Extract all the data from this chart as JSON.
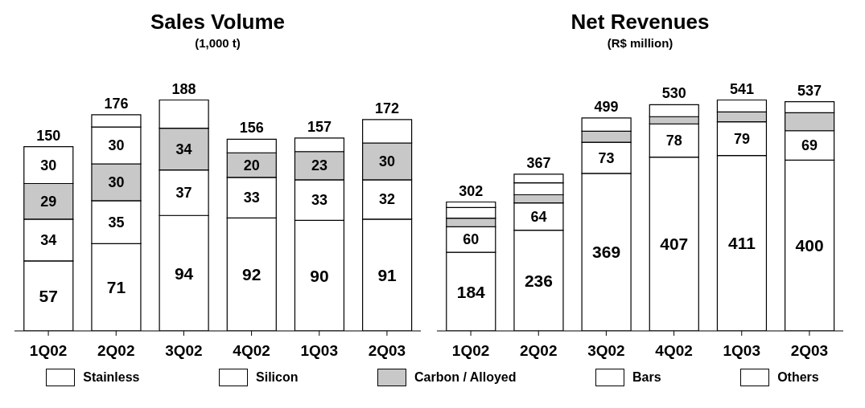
{
  "chart_data": [
    {
      "type": "bar",
      "title": "Sales Volume",
      "subtitle": "(1,000 t)",
      "stacked": true,
      "legend": "bottom",
      "categories": [
        "1Q02",
        "2Q02",
        "3Q02",
        "4Q02",
        "1Q03",
        "2Q03"
      ],
      "series": [
        {
          "name": "Stainless",
          "color": "#ffffff",
          "values": [
            57,
            71,
            94,
            92,
            90,
            91
          ],
          "value_labels": [
            "57",
            "71",
            "94",
            "92",
            "90",
            "91"
          ]
        },
        {
          "name": "Silicon",
          "color": "#ffffff",
          "values": [
            34,
            35,
            37,
            33,
            33,
            32
          ],
          "value_labels": [
            "34",
            "35",
            "37",
            "33",
            "33",
            "32"
          ]
        },
        {
          "name": "Carbon / Alloyed",
          "color": "#c8c8c8",
          "values": [
            29,
            30,
            34,
            20,
            23,
            30
          ],
          "value_labels": [
            "29",
            "30",
            "34",
            "20",
            "23",
            "30"
          ]
        },
        {
          "name": "Bars",
          "color": "#ffffff",
          "values": [
            30,
            30,
            null,
            null,
            null,
            null
          ],
          "value_labels": [
            "30",
            "30",
            null,
            null,
            null,
            null
          ]
        },
        {
          "name": "Others",
          "color": "#ffffff",
          "values": [
            null,
            10,
            23,
            11,
            11,
            19
          ]
        }
      ],
      "totals": [
        "150",
        "176",
        "188",
        "156",
        "157",
        "172"
      ]
    },
    {
      "type": "bar",
      "title": "Net Revenues",
      "subtitle": "(R$ million)",
      "stacked": true,
      "categories": [
        "1Q02",
        "2Q02",
        "3Q02",
        "4Q02",
        "1Q03",
        "2Q03"
      ],
      "series": [
        {
          "color": "#ffffff",
          "values": [
            184,
            236,
            369,
            407,
            411,
            400
          ],
          "value_labels": [
            "184",
            "236",
            "369",
            "407",
            "411",
            "400"
          ]
        },
        {
          "color": "#ffffff",
          "values": [
            60,
            64,
            73,
            78,
            79,
            69
          ],
          "value_labels": [
            "60",
            "64",
            "73",
            "78",
            "79",
            "69"
          ]
        },
        {
          "color": "#c8c8c8",
          "values": [
            20,
            19,
            26,
            17,
            23,
            42
          ]
        },
        {
          "color": "#ffffff",
          "values": [
            25,
            28,
            null,
            null,
            null,
            null
          ]
        },
        {
          "color": "#ffffff",
          "values": [
            13,
            20,
            31,
            28,
            28,
            26
          ]
        }
      ],
      "totals": [
        "302",
        "367",
        "499",
        "530",
        "541",
        "537"
      ]
    }
  ]
}
